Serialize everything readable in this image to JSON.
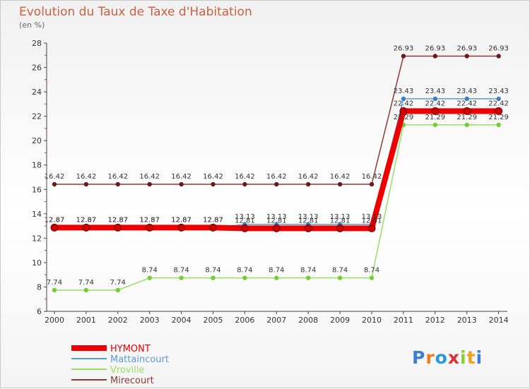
{
  "chart_data": {
    "type": "line",
    "title": "Evolution du Taux de Taxe d'Habitation",
    "subtitle": "(en %)",
    "xlabel": "",
    "ylabel": "",
    "ylim": [
      6,
      28
    ],
    "yticks": [
      6,
      8,
      10,
      12,
      14,
      16,
      18,
      20,
      22,
      24,
      26,
      28
    ],
    "grid": false,
    "legend_position": "bottom-left",
    "categories": [
      "2000",
      "2001",
      "2002",
      "2003",
      "2004",
      "2005",
      "2006",
      "2007",
      "2008",
      "2009",
      "2010",
      "2011",
      "2012",
      "2013",
      "2014"
    ],
    "series": [
      {
        "name": "HYMONT",
        "color": "#ee0000",
        "marker_color": "#cc0000",
        "values": [
          12.87,
          12.87,
          12.87,
          12.87,
          12.87,
          12.87,
          12.81,
          12.81,
          12.81,
          12.81,
          12.81,
          22.42,
          22.42,
          22.42,
          22.42
        ],
        "labels": [
          "12.87",
          "12.87",
          "12.87",
          "12.87",
          "12.87",
          "12.87",
          "12.81",
          "12.81",
          "12.81",
          "12.81",
          "12.81",
          "22.42",
          "22.42",
          "22.42",
          "22.42"
        ]
      },
      {
        "name": "Mattaincourt",
        "color": "#5b9bd5",
        "marker_color": "#3a80c8",
        "values": [
          12.87,
          12.87,
          12.87,
          12.87,
          12.87,
          12.87,
          13.13,
          13.13,
          13.13,
          13.13,
          13.13,
          23.43,
          23.43,
          23.43,
          23.43
        ],
        "labels": [
          "12.87",
          "12.87",
          "12.87",
          "12.87",
          "12.87",
          "12.87",
          "13.13",
          "13.13",
          "13.13",
          "13.13",
          "13.13",
          "23.43",
          "23.43",
          "23.43",
          "23.43"
        ]
      },
      {
        "name": "Vroville",
        "color": "#99dd66",
        "marker_color": "#77cc33",
        "values": [
          7.74,
          7.74,
          7.74,
          8.74,
          8.74,
          8.74,
          8.74,
          8.74,
          8.74,
          8.74,
          8.74,
          21.29,
          21.29,
          21.29,
          21.29
        ],
        "labels": [
          "7.74",
          "7.74",
          "7.74",
          "8.74",
          "8.74",
          "8.74",
          "8.74",
          "8.74",
          "8.74",
          "8.74",
          "8.74",
          "21.29",
          "21.29",
          "21.29",
          "21.29"
        ]
      },
      {
        "name": "Mirecourt",
        "color": "#8b3a3a",
        "marker_color": "#6b1a1a",
        "values": [
          16.42,
          16.42,
          16.42,
          16.42,
          16.42,
          16.42,
          16.42,
          16.42,
          16.42,
          16.42,
          16.42,
          26.93,
          26.93,
          26.93,
          26.93
        ],
        "labels": [
          "16.42",
          "16.42",
          "16.42",
          "16.42",
          "16.42",
          "16.42",
          "16.42",
          "16.42",
          "16.42",
          "16.42",
          "16.42",
          "26.93",
          "26.93",
          "26.93",
          "26.93"
        ]
      }
    ]
  },
  "branding": {
    "logo_letters": [
      "P",
      "r",
      "o",
      "x",
      "i",
      "t",
      "i"
    ],
    "logo_colors": [
      "#3a7fd8",
      "#f07820",
      "#2a9ad6",
      "#e03030",
      "#8acc30",
      "#f0a020",
      "#3a7fd8"
    ]
  }
}
